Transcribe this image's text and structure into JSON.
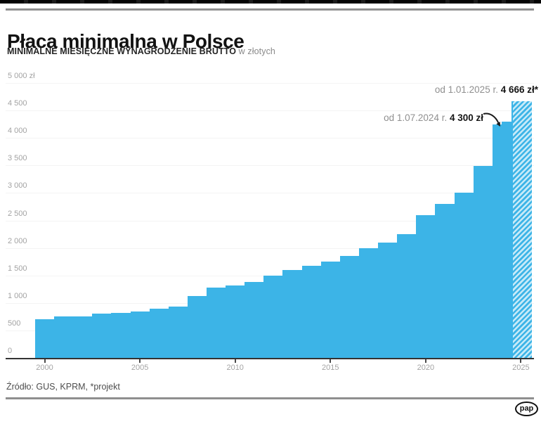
{
  "header": {
    "title": "Płaca minimalna w Polsce",
    "subtitle_bold": "MINIMALNE MIESIĘCZNE WYNAGRODZENIE BRUTTO",
    "subtitle_light": " w złotych"
  },
  "annotations": {
    "a2025": {
      "prefix": "od 1.01.2025 r. ",
      "value": "4 666 zł*"
    },
    "a2024": {
      "prefix": "od 1.07.2024 r. ",
      "value": "4 300 zł"
    }
  },
  "footer": {
    "source": "Źródło: GUS, KPRM, *projekt",
    "logo": "pap"
  },
  "colors": {
    "bar": "#3cb4e7",
    "hatch_light": "#c6eaf8",
    "grid": "#f4f4f4",
    "axis_line": "#333333",
    "tick": "#4a4a4a",
    "tick_label": "#a3a3a3"
  },
  "chart_data": {
    "type": "bar",
    "title": "Płaca minimalna w Polsce",
    "subtitle": "Minimalne miesięczne wynagrodzenie brutto w złotych",
    "unit": "zł",
    "ylim": [
      0,
      5000
    ],
    "ytick_step": 500,
    "ytick_labels": [
      "0",
      "500",
      "1 000",
      "1 500",
      "2 000",
      "2 500",
      "3 000",
      "3 500",
      "4 000",
      "4 500",
      "5 000 zł"
    ],
    "xtick_years": [
      2000,
      2005,
      2010,
      2015,
      2020,
      2025
    ],
    "grid": "faint-horizontal",
    "legend": "none",
    "callouts": [
      {
        "target_year": 2025,
        "text": "od 1.01.2025 r. 4 666 zł*"
      },
      {
        "target_year": 2024,
        "text": "od 1.07.2024 r. 4 300 zł"
      }
    ],
    "bars": [
      {
        "year": 2000,
        "value": 700
      },
      {
        "year": 2001,
        "value": 760
      },
      {
        "year": 2002,
        "value": 760
      },
      {
        "year": 2003,
        "value": 800
      },
      {
        "year": 2004,
        "value": 824
      },
      {
        "year": 2005,
        "value": 849
      },
      {
        "year": 2006,
        "value": 899
      },
      {
        "year": 2007,
        "value": 936
      },
      {
        "year": 2008,
        "value": 1126
      },
      {
        "year": 2009,
        "value": 1276
      },
      {
        "year": 2010,
        "value": 1317
      },
      {
        "year": 2011,
        "value": 1386
      },
      {
        "year": 2012,
        "value": 1500
      },
      {
        "year": 2013,
        "value": 1600
      },
      {
        "year": 2014,
        "value": 1680
      },
      {
        "year": 2015,
        "value": 1750
      },
      {
        "year": 2016,
        "value": 1850
      },
      {
        "year": 2017,
        "value": 2000
      },
      {
        "year": 2018,
        "value": 2100
      },
      {
        "year": 2019,
        "value": 2250
      },
      {
        "year": 2020,
        "value": 2600
      },
      {
        "year": 2021,
        "value": 2800
      },
      {
        "year": 2022,
        "value": 3010
      },
      {
        "year": 2023,
        "value": 3490
      },
      {
        "year": 2024,
        "value": 4242,
        "value2": 4300
      },
      {
        "year": 2025,
        "value": 4666,
        "projected": true
      }
    ]
  }
}
